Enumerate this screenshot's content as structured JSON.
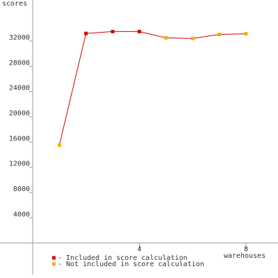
{
  "chart_data": {
    "type": "line",
    "y_label": "scores",
    "x_label": "warehouses",
    "x": [
      1,
      2,
      3,
      4,
      5,
      6,
      7,
      8
    ],
    "series": [
      {
        "values": [
          15500,
          33200,
          33500,
          33500,
          32500,
          32400,
          33050,
          33150
        ],
        "color": "#cc0000",
        "point_colors": [
          "#ffaa00",
          "#dd0000",
          "#dd0000",
          "#dd0000",
          "#ffaa00",
          "#ffaa00",
          "#ffaa00",
          "#ffaa00"
        ]
      }
    ],
    "xlim": [
      0,
      9.2
    ],
    "xticks": [
      4,
      8
    ],
    "ylim": [
      -5000,
      38500
    ],
    "yticks": [
      4000,
      8000,
      12000,
      16000,
      20000,
      24000,
      28000,
      32000
    ],
    "legend": [
      {
        "label": "- Included in score calculation",
        "color": "#dd0000"
      },
      {
        "label": "- Not included in score calculation",
        "color": "#ffaa00"
      }
    ]
  }
}
